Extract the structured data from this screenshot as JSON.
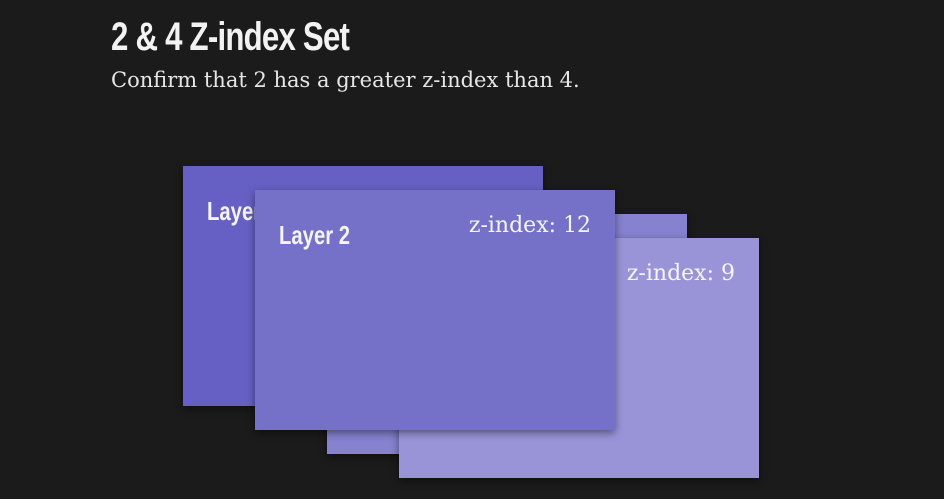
{
  "header": {
    "title": "2 & 4 Z-index Set",
    "subtitle": "Confirm that 2 has a greater z-index than 4."
  },
  "layers": [
    {
      "label": "Layer 1",
      "z_label": "",
      "color": "#6660c4"
    },
    {
      "label": "Layer 2",
      "z_label": "z-index: 12",
      "color": "#7571c8"
    },
    {
      "label": "",
      "z_label": "",
      "color": "#8782d0"
    },
    {
      "label": "",
      "z_label": "z-index: 9",
      "color": "#9994d8"
    }
  ]
}
